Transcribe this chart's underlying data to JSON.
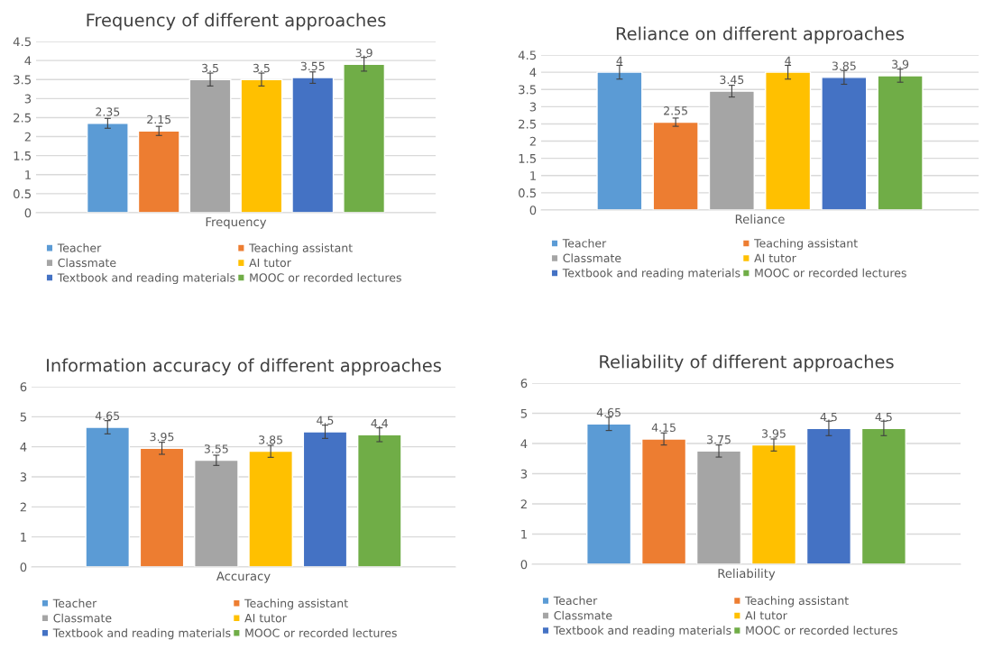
{
  "chart_data": [
    {
      "type": "bar",
      "title": "Frequency of different approaches",
      "categories": [
        "Frequency"
      ],
      "ylim": [
        0,
        4.5
      ],
      "yticks": [
        0,
        0.5,
        1,
        1.5,
        2,
        2.5,
        3,
        3.5,
        4,
        4.5
      ],
      "grid": "y",
      "legend": "bottom",
      "data_labels": true,
      "series": [
        {
          "name": "Teacher",
          "color": "#5b9bd5",
          "values": [
            2.35
          ],
          "errors": [
            0.13
          ]
        },
        {
          "name": "Teaching assistant",
          "color": "#ed7d31",
          "values": [
            2.15
          ],
          "errors": [
            0.12
          ]
        },
        {
          "name": "Classmate",
          "color": "#a5a5a5",
          "values": [
            3.5
          ],
          "errors": [
            0.17
          ]
        },
        {
          "name": "AI tutor",
          "color": "#ffc000",
          "values": [
            3.5
          ],
          "errors": [
            0.17
          ]
        },
        {
          "name": "Textbook and reading materials",
          "color": "#4472c4",
          "values": [
            3.55
          ],
          "errors": [
            0.15
          ]
        },
        {
          "name": "MOOC or recorded lectures",
          "color": "#70ad47",
          "values": [
            3.9
          ],
          "errors": [
            0.18
          ]
        }
      ]
    },
    {
      "type": "bar",
      "title": "Reliance on different approaches",
      "categories": [
        "Reliance"
      ],
      "ylim": [
        0,
        4.5
      ],
      "yticks": [
        0,
        0.5,
        1,
        1.5,
        2,
        2.5,
        3,
        3.5,
        4,
        4.5
      ],
      "grid": "y",
      "legend": "bottom",
      "data_labels": true,
      "series": [
        {
          "name": "Teacher",
          "color": "#5b9bd5",
          "values": [
            4
          ],
          "errors": [
            0.2
          ]
        },
        {
          "name": "Teaching assistant",
          "color": "#ed7d31",
          "values": [
            2.55
          ],
          "errors": [
            0.12
          ]
        },
        {
          "name": "Classmate",
          "color": "#a5a5a5",
          "values": [
            3.45
          ],
          "errors": [
            0.17
          ]
        },
        {
          "name": "AI tutor",
          "color": "#ffc000",
          "values": [
            4
          ],
          "errors": [
            0.2
          ]
        },
        {
          "name": "Textbook and reading materials",
          "color": "#4472c4",
          "values": [
            3.85
          ],
          "errors": [
            0.2
          ]
        },
        {
          "name": "MOOC or recorded lectures",
          "color": "#70ad47",
          "values": [
            3.9
          ],
          "errors": [
            0.19
          ]
        }
      ]
    },
    {
      "type": "bar",
      "title": "Information accuracy of different approaches",
      "categories": [
        "Accuracy"
      ],
      "ylim": [
        0,
        6
      ],
      "yticks": [
        0,
        1,
        2,
        3,
        4,
        5,
        6
      ],
      "grid": "y",
      "legend": "bottom",
      "data_labels": true,
      "series": [
        {
          "name": "Teacher",
          "color": "#5b9bd5",
          "values": [
            4.65
          ],
          "errors": [
            0.22
          ]
        },
        {
          "name": "Teaching assistant",
          "color": "#ed7d31",
          "values": [
            3.95
          ],
          "errors": [
            0.2
          ]
        },
        {
          "name": "Classmate",
          "color": "#a5a5a5",
          "values": [
            3.55
          ],
          "errors": [
            0.17
          ]
        },
        {
          "name": "AI tutor",
          "color": "#ffc000",
          "values": [
            3.85
          ],
          "errors": [
            0.2
          ]
        },
        {
          "name": "Textbook and reading materials",
          "color": "#4472c4",
          "values": [
            4.5
          ],
          "errors": [
            0.22
          ]
        },
        {
          "name": "MOOC or recorded lectures",
          "color": "#70ad47",
          "values": [
            4.4
          ],
          "errors": [
            0.23
          ]
        }
      ]
    },
    {
      "type": "bar",
      "title": "Reliability of different approaches",
      "categories": [
        "Reliability"
      ],
      "ylim": [
        0,
        6
      ],
      "yticks": [
        0,
        1,
        2,
        3,
        4,
        5,
        6
      ],
      "grid": "y",
      "legend": "bottom",
      "data_labels": true,
      "series": [
        {
          "name": "Teacher",
          "color": "#5b9bd5",
          "values": [
            4.65
          ],
          "errors": [
            0.22
          ]
        },
        {
          "name": "Teaching assistant",
          "color": "#ed7d31",
          "values": [
            4.15
          ],
          "errors": [
            0.2
          ]
        },
        {
          "name": "Classmate",
          "color": "#a5a5a5",
          "values": [
            3.75
          ],
          "errors": [
            0.2
          ]
        },
        {
          "name": "AI tutor",
          "color": "#ffc000",
          "values": [
            3.95
          ],
          "errors": [
            0.2
          ]
        },
        {
          "name": "Textbook and reading materials",
          "color": "#4472c4",
          "values": [
            4.5
          ],
          "errors": [
            0.24
          ]
        },
        {
          "name": "MOOC or recorded lectures",
          "color": "#70ad47",
          "values": [
            4.5
          ],
          "errors": [
            0.24
          ]
        }
      ]
    }
  ]
}
